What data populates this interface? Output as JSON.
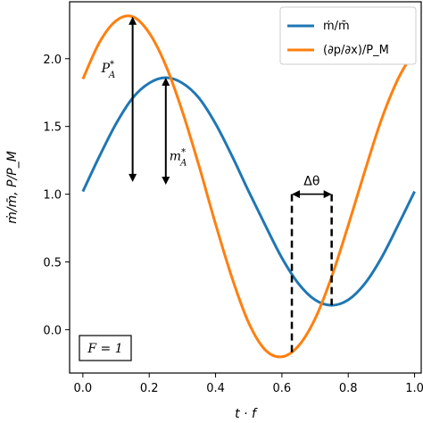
{
  "chart_data": {
    "type": "line",
    "title": "",
    "xlabel": "t · f",
    "ylabel": "ṁ/m̄, P/P_M",
    "xlim": [
      -0.04,
      1.02
    ],
    "ylim": [
      -0.32,
      2.42
    ],
    "xticks": [
      0.0,
      0.2,
      0.4,
      0.6,
      0.8,
      1.0
    ],
    "xtick_labels": [
      "0.0",
      "0.2",
      "0.4",
      "0.6",
      "0.8",
      "1.0"
    ],
    "yticks": [
      0.0,
      0.5,
      1.0,
      1.5,
      2.0
    ],
    "ytick_labels": [
      "0.0",
      "0.5",
      "1.0",
      "1.5",
      "2.0"
    ],
    "grid": false,
    "legend_position": "top-right",
    "series": [
      {
        "name": "ṁ/m̄",
        "color": "#1f77b4",
        "x": [
          0.0,
          0.05,
          0.1,
          0.15,
          0.2,
          0.25,
          0.3,
          0.35,
          0.4,
          0.45,
          0.5,
          0.55,
          0.6,
          0.65,
          0.7,
          0.75,
          0.8,
          0.85,
          0.9,
          0.95,
          1.0
        ],
        "y": [
          1.02,
          1.28,
          1.52,
          1.71,
          1.82,
          1.86,
          1.82,
          1.71,
          1.52,
          1.28,
          1.02,
          0.77,
          0.53,
          0.34,
          0.22,
          0.18,
          0.22,
          0.34,
          0.53,
          0.77,
          1.02
        ]
      },
      {
        "name": "(∂p/∂x)/P_M",
        "color": "#ff7f0e",
        "x": [
          0.0,
          0.05,
          0.1,
          0.15,
          0.2,
          0.25,
          0.3,
          0.35,
          0.4,
          0.45,
          0.5,
          0.55,
          0.6,
          0.65,
          0.7,
          0.75,
          0.8,
          0.85,
          0.9,
          0.95,
          1.0
        ],
        "y": [
          1.85,
          2.12,
          2.28,
          2.31,
          2.19,
          1.95,
          1.61,
          1.21,
          0.78,
          0.38,
          0.05,
          -0.15,
          -0.2,
          -0.12,
          0.08,
          0.39,
          0.77,
          1.17,
          1.55,
          1.85,
          2.06
        ]
      }
    ],
    "annotations": {
      "p_arrow": {
        "x": 0.15,
        "y_from": 2.31,
        "y_to": 1.09,
        "label_main": "P",
        "label_sub": "A",
        "label_sup": "*"
      },
      "m_arrow": {
        "x": 0.25,
        "y_from": 1.86,
        "y_to": 1.07,
        "label_main": "m",
        "label_sub": "A",
        "label_sup": "*"
      },
      "dtheta": {
        "x1": 0.63,
        "x2": 0.75,
        "y_top": 1.0,
        "label": "Δθ"
      },
      "box_label": "F = 1"
    }
  },
  "legend": {
    "m_label": "ṁ/m̄",
    "p_label": "(∂p/∂x)/P_M"
  }
}
